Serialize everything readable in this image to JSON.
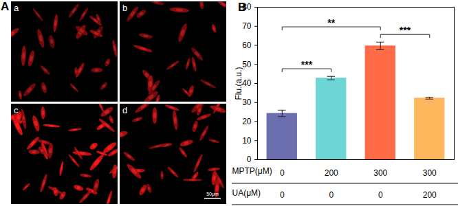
{
  "chart_data": {
    "type": "bar",
    "title": "B",
    "y_label": "Flu.(a.u.)",
    "categories": [
      null,
      null,
      null,
      null
    ],
    "values": [
      24.3,
      42.8,
      59.7,
      32.3
    ],
    "errors": [
      1.7,
      0.9,
      2.0,
      0.5
    ],
    "colors": [
      "#6b6faf",
      "#6dd5d3",
      "#ff6a47",
      "#ffb75e"
    ],
    "ylim": [
      0,
      80
    ],
    "yticks": [
      0,
      10,
      20,
      30,
      40,
      50,
      60,
      70,
      80
    ],
    "x_table": [
      {
        "label": "MPTP(μM)",
        "values": [
          0,
          200,
          300,
          300
        ]
      },
      {
        "label": "UA(μM)",
        "values": [
          0,
          0,
          0,
          200
        ]
      }
    ],
    "significance": [
      {
        "from": 0,
        "to": 1,
        "label": "***"
      },
      {
        "from": 0,
        "to": 2,
        "label": "**"
      },
      {
        "from": 2,
        "to": 3,
        "label": "***"
      }
    ]
  },
  "figure": {
    "label": "A",
    "images": [
      {
        "label": "a"
      },
      {
        "label": "b"
      },
      {
        "label": "c"
      },
      {
        "label": "d"
      }
    ],
    "scale_bar": "50μm"
  }
}
